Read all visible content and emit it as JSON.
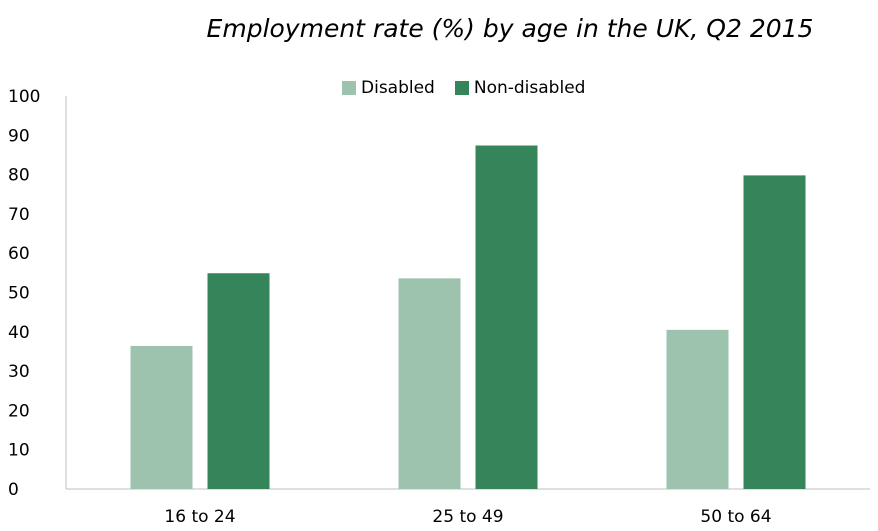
{
  "chart_data": {
    "type": "bar",
    "title": "Employment rate (%) by age in the UK, Q2 2015",
    "xlabel": "",
    "ylabel": "",
    "categories": [
      "16 to 24",
      "25 to 49",
      "50 to 64"
    ],
    "series": [
      {
        "name": "Disabled",
        "color": "#9dc3ae",
        "values": [
          36.4,
          53.6,
          40.5
        ]
      },
      {
        "name": "Non-disabled",
        "color": "#36845a",
        "values": [
          54.9,
          87.4,
          79.8
        ]
      }
    ],
    "ylim": [
      0,
      100
    ],
    "yticks": [
      "0",
      "10",
      "20",
      "30",
      "40",
      "50",
      "60",
      "70",
      "80",
      "90",
      "100"
    ],
    "grid": false,
    "legend_position": "top-center"
  }
}
